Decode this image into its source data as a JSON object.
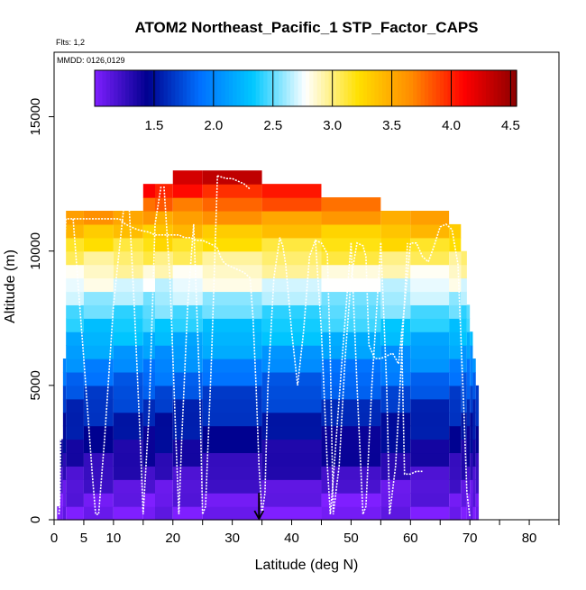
{
  "chart_data": {
    "type": "heatmap",
    "title": "ATOM2 Northeast_Pacific_1 STP_Factor_CAPS",
    "flights_note": "Flts: 1,2",
    "dates_note": "MMDD: 0126,0129",
    "xlabel": "Latitude (deg N)",
    "ylabel": "Altitude (m)",
    "xlim": [
      0,
      85
    ],
    "ylim": [
      0,
      17400
    ],
    "x_ticks": [
      0,
      5,
      10,
      20,
      30,
      40,
      50,
      60,
      70,
      80
    ],
    "x_tick_labels": [
      "0",
      "5",
      "10",
      "20",
      "30",
      "40",
      "50",
      "60",
      "70",
      "80"
    ],
    "x_minor_ticks": [
      15,
      25,
      35,
      45,
      55,
      65,
      75,
      85
    ],
    "y_ticks": [
      0,
      5000,
      10000,
      15000
    ],
    "y_tick_labels": [
      "0",
      "5000",
      "10000",
      "15000"
    ],
    "colorbar": {
      "min": 1.0,
      "max": 4.55,
      "ticks": [
        1.5,
        2.0,
        2.5,
        3.0,
        3.5,
        4.0,
        4.5
      ],
      "tick_labels": [
        "1.5",
        "2.0",
        "2.5",
        "3.0",
        "3.5",
        "4.0",
        "4.5"
      ],
      "colors": [
        "#7f1fff",
        "#00008f",
        "#0070ff",
        "#00c8ff",
        "#ffffff",
        "#ffe000",
        "#ff8c00",
        "#ff0000",
        "#8b0000"
      ]
    },
    "bin_height_m": 500,
    "curtain_top_alt_m": [
      [
        0.5,
        1.0,
        500
      ],
      [
        1.0,
        1.5,
        3000
      ],
      [
        1.5,
        2.0,
        6000
      ],
      [
        2.0,
        5.0,
        11500
      ],
      [
        5.0,
        10.0,
        11500
      ],
      [
        10.0,
        15.0,
        11500
      ],
      [
        15.0,
        17.0,
        12500
      ],
      [
        17.0,
        20.0,
        12500
      ],
      [
        20.0,
        25.0,
        13000
      ],
      [
        25.0,
        35.0,
        13000
      ],
      [
        35.0,
        45.0,
        12500
      ],
      [
        45.0,
        55.0,
        12000
      ],
      [
        55.0,
        60.0,
        11500
      ],
      [
        60.0,
        66.5,
        11500
      ],
      [
        66.5,
        68.5,
        11000
      ],
      [
        68.5,
        69.5,
        10000
      ],
      [
        69.5,
        70.0,
        8000
      ],
      [
        70.0,
        70.5,
        7000
      ],
      [
        70.5,
        71.0,
        6000
      ],
      [
        71.0,
        71.5,
        5000
      ]
    ],
    "color_value_by_altitude": [
      {
        "alt_m": 0,
        "value": 1.02
      },
      {
        "alt_m": 1000,
        "value": 1.1
      },
      {
        "alt_m": 2000,
        "value": 1.3
      },
      {
        "alt_m": 3000,
        "value": 1.45
      },
      {
        "alt_m": 4000,
        "value": 1.6
      },
      {
        "alt_m": 5000,
        "value": 1.8
      },
      {
        "alt_m": 6000,
        "value": 2.05
      },
      {
        "alt_m": 7000,
        "value": 2.3
      },
      {
        "alt_m": 8000,
        "value": 2.55
      },
      {
        "alt_m": 9000,
        "value": 2.8
      },
      {
        "alt_m": 10000,
        "value": 3.1
      },
      {
        "alt_m": 11000,
        "value": 3.45
      },
      {
        "alt_m": 12000,
        "value": 3.9
      },
      {
        "alt_m": 13000,
        "value": 4.45
      }
    ],
    "flight_track": {
      "x": [
        0.8,
        0.9,
        1.0,
        1.2,
        1.5,
        1.8,
        2.0,
        2.5,
        3.0,
        5.0,
        8.0,
        10.0,
        11.0,
        12.0,
        14.0,
        16.0,
        17.0,
        18.0,
        19.0,
        20.0,
        21.0,
        22.0,
        23.0,
        24.0,
        25.0,
        26.0,
        27.0,
        27.5,
        28.0,
        28.5,
        29.0,
        30.0,
        31.0,
        32.0,
        33.0,
        33.5,
        34.0,
        34.5,
        35.0,
        35.5,
        36.0,
        37.0,
        38.0,
        38.5,
        39.0,
        40.0,
        41.0,
        42.0,
        43.0,
        44.0,
        45.0,
        46.0,
        46.5,
        47.0,
        48.0,
        49.0,
        50.0,
        51.0,
        52.0,
        52.5,
        53.0,
        54.0,
        55.0,
        56.0,
        57.0,
        57.5,
        58.0,
        59.0,
        60.0,
        61.0,
        62.0,
        63.0,
        64.0,
        65.0,
        66.0,
        67.0,
        68.0,
        69.0,
        69.5,
        70.0
      ],
      "y": [
        200,
        400,
        1000,
        4000,
        8000,
        10500,
        11200,
        11200,
        11200,
        11200,
        11200,
        11200,
        11200,
        11000,
        10800,
        10700,
        10600,
        10600,
        10600,
        10600,
        10600,
        10500,
        10500,
        10400,
        10400,
        10300,
        10200,
        10100,
        9800,
        9600,
        9500,
        9400,
        9300,
        9200,
        9000,
        7500,
        5000,
        2000,
        200,
        1000,
        5000,
        9000,
        10500,
        10200,
        9500,
        7000,
        5000,
        7000,
        9800,
        10400,
        10300,
        9900,
        6000,
        200,
        2000,
        6000,
        9000,
        10300,
        10200,
        9800,
        6500,
        6000,
        6000,
        6100,
        6200,
        6000,
        5800,
        8000,
        10300,
        10300,
        9800,
        9600,
        10200,
        10900,
        11000,
        10800,
        9500,
        4000,
        1000,
        100
      ]
    },
    "flight_track_dips": [
      {
        "x": [
          3.2,
          5.0,
          6.5,
          7.0,
          7.5,
          8.5,
          10.0,
          12.0
        ],
        "y": [
          11200,
          6000,
          1500,
          200,
          200,
          3000,
          8000,
          12200
        ]
      },
      {
        "x": [
          12.5,
          13.5,
          14.5,
          15.0,
          16.0,
          17.0,
          18.0
        ],
        "y": [
          12200,
          8000,
          3000,
          200,
          4000,
          11000,
          12400
        ]
      },
      {
        "x": [
          18.5,
          19.5,
          20.5,
          21.0,
          21.5,
          22.5,
          23.5
        ],
        "y": [
          12400,
          9000,
          3000,
          200,
          3000,
          8000,
          11000
        ]
      },
      {
        "x": [
          23.5,
          24.5,
          25.0,
          25.5,
          26.5,
          27.5
        ],
        "y": [
          11000,
          5000,
          200,
          500,
          6000,
          12800
        ]
      },
      {
        "x": [
          27.5,
          29.0,
          30.0,
          31.0,
          32.0,
          33.0
        ],
        "y": [
          12800,
          12700,
          12700,
          12600,
          12500,
          12300
        ]
      },
      {
        "x": [
          44.0,
          45.0,
          46.0,
          46.5,
          47.0,
          48.5,
          50.0
        ],
        "y": [
          10400,
          7000,
          2000,
          200,
          1500,
          6000,
          10300
        ]
      },
      {
        "x": [
          50.0,
          51.0,
          52.0,
          52.5,
          53.5,
          55.0
        ],
        "y": [
          10300,
          5000,
          200,
          500,
          5000,
          10300
        ]
      },
      {
        "x": [
          55.0,
          56.0,
          56.5,
          57.5,
          58.5,
          59.5
        ],
        "y": [
          10300,
          5000,
          200,
          2000,
          6000,
          10300
        ]
      },
      {
        "x": [
          58.5,
          59.0,
          60.0,
          61.0,
          62.0
        ],
        "y": [
          7000,
          1700,
          1700,
          1800,
          1800
        ]
      }
    ],
    "marker": {
      "x": 34.5,
      "label": "arrow"
    }
  }
}
